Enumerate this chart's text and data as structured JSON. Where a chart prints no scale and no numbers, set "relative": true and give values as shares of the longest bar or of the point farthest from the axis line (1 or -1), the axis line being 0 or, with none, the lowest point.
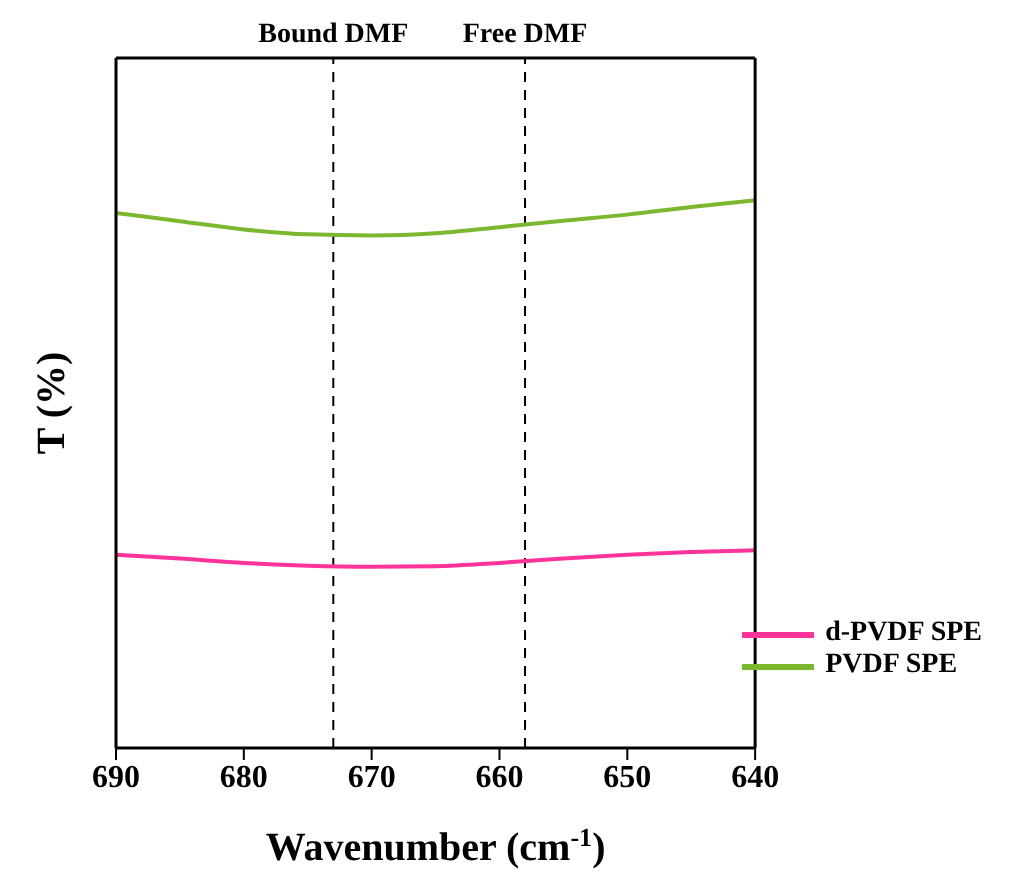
{
  "chart_data": {
    "type": "line",
    "relative": true,
    "xlabel": "Wavenumber (cm$^{-1}$)",
    "ylabel": "T (%)",
    "x": [
      690,
      685,
      680,
      675,
      670,
      665,
      660,
      655,
      650,
      645,
      640
    ],
    "xlim": [
      690,
      640
    ],
    "xticks": [
      690,
      680,
      670,
      660,
      650,
      640
    ],
    "series": [
      {
        "name": "d-PVDF SPE",
        "color": "#ff3399",
        "values": [
          0.353,
          0.346,
          0.338,
          0.333,
          0.331,
          0.332,
          0.338,
          0.346,
          0.353,
          0.358,
          0.361
        ]
      },
      {
        "name": "PVDF SPE",
        "color": "#7cb82f",
        "values": [
          0.977,
          0.962,
          0.947,
          0.938,
          0.936,
          0.94,
          0.951,
          0.963,
          0.974,
          0.988,
          1
        ]
      }
    ],
    "ref_lines": [
      {
        "axis": "x",
        "value": 673,
        "label": "Bound DMF",
        "color": "#000000",
        "line_style": "dashed"
      },
      {
        "axis": "x",
        "value": 658,
        "label": "Free DMF",
        "color": "#000000",
        "line_style": "dashed"
      }
    ],
    "legend": "bottom right",
    "grid": false,
    "marker": "none",
    "line_style": "solid"
  }
}
